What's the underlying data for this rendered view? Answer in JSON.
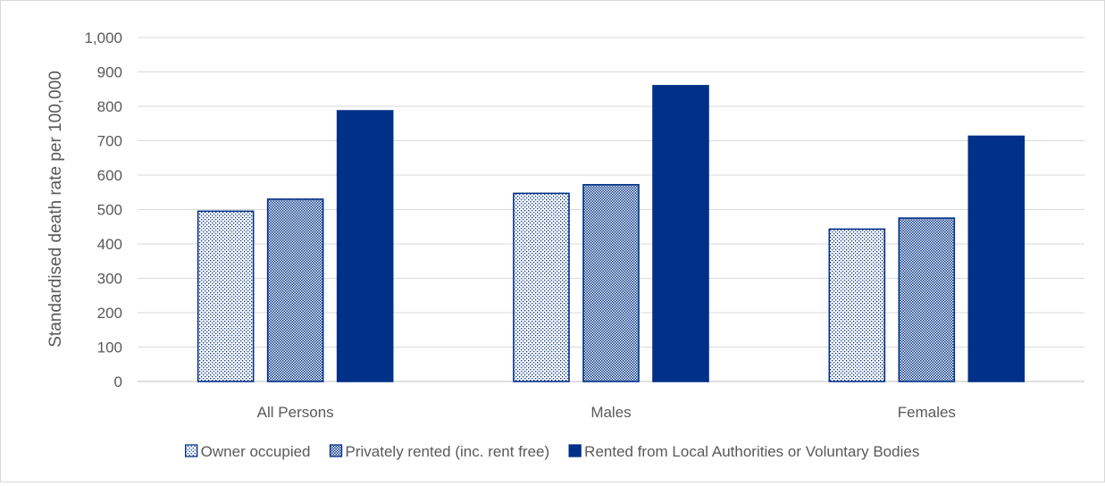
{
  "chart_data": {
    "type": "bar",
    "title": "",
    "xlabel": "",
    "ylabel": "Standardised death rate per 100,000",
    "ylim": [
      0,
      1000
    ],
    "yticks": [
      0,
      100,
      200,
      300,
      400,
      500,
      600,
      700,
      800,
      900,
      1000
    ],
    "ytick_labels": [
      "0",
      "100",
      "200",
      "300",
      "400",
      "500",
      "600",
      "700",
      "800",
      "900",
      "1,000"
    ],
    "grid": true,
    "legend_position": "bottom",
    "categories": [
      "All Persons",
      "Males",
      "Females"
    ],
    "series": [
      {
        "name": "Owner occupied",
        "values": [
          495,
          547,
          443
        ],
        "pattern": "dots",
        "color": "#003087"
      },
      {
        "name": "Privately rented (inc. rent free)",
        "values": [
          530,
          572,
          475
        ],
        "pattern": "checker",
        "color": "#003087"
      },
      {
        "name": "Rented from Local Authorities or Voluntary Bodies",
        "values": [
          787,
          860,
          713
        ],
        "pattern": "solid",
        "color": "#003087"
      }
    ]
  }
}
